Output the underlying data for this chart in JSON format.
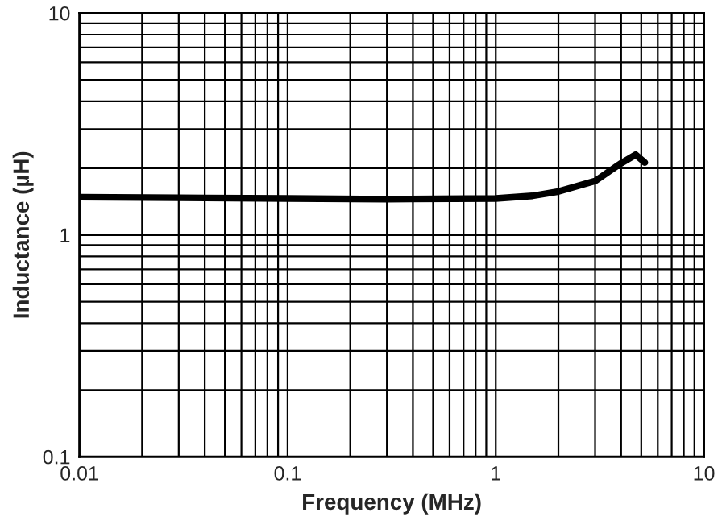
{
  "chart_data": {
    "type": "line",
    "xlabel": "Frequency (MHz)",
    "ylabel": "Inductance (µH)",
    "log": "xy",
    "grid": true,
    "xlim": [
      0.01,
      10
    ],
    "ylim": [
      0.1,
      10
    ],
    "xticks": [
      0.01,
      0.1,
      1,
      10
    ],
    "yticks": [
      0.1,
      1,
      10
    ],
    "series": [
      {
        "color": "#000000",
        "x": [
          0.01,
          0.03,
          0.1,
          0.3,
          1,
          1.5,
          2,
          3,
          3.95,
          4.7,
          5.2
        ],
        "values": [
          1.48,
          1.47,
          1.46,
          1.45,
          1.46,
          1.5,
          1.57,
          1.75,
          2.09,
          2.3,
          2.12
        ]
      }
    ]
  }
}
